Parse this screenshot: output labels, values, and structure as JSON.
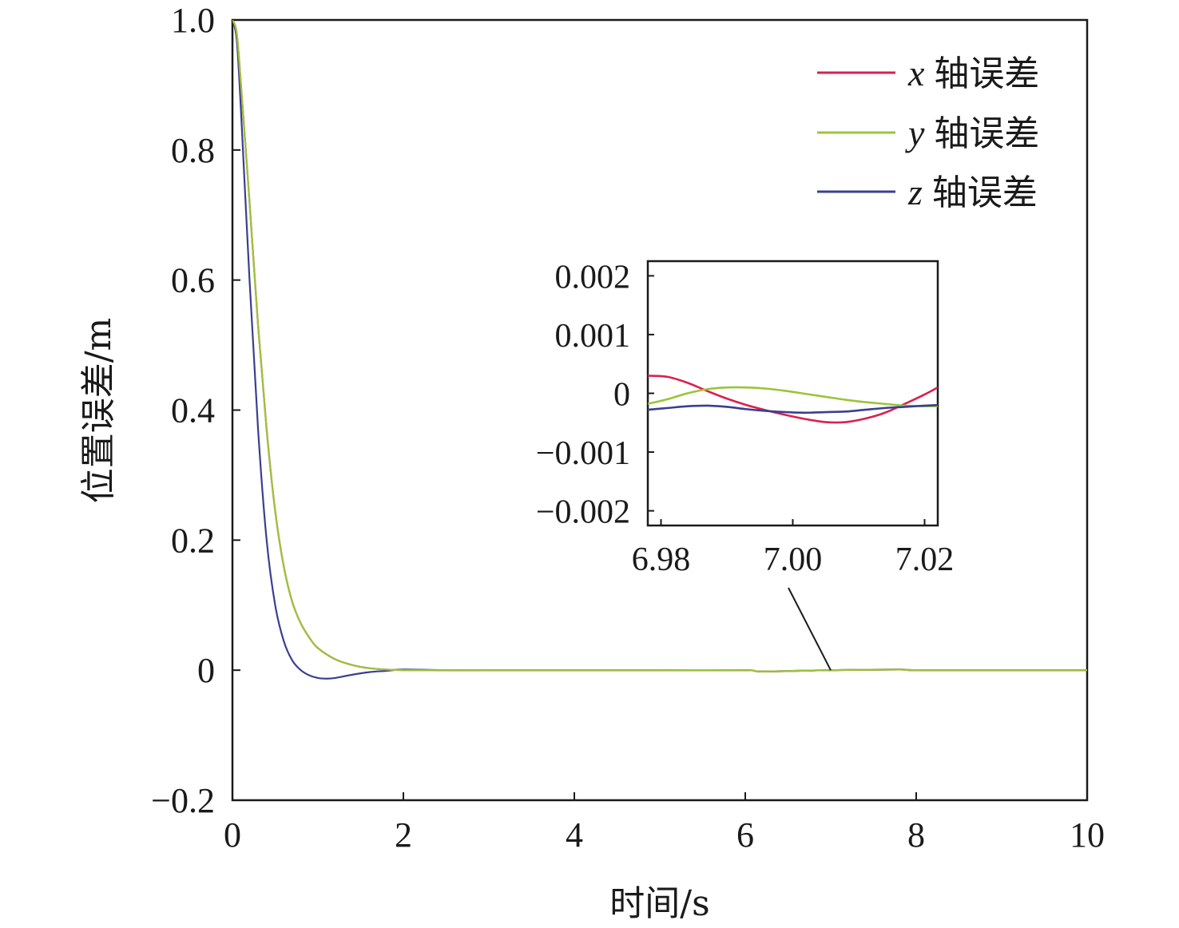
{
  "chart_data": [
    {
      "type": "line",
      "role": "main",
      "xlabel": "时间/s",
      "ylabel": "位置误差/m",
      "xlim": [
        0,
        10
      ],
      "ylim": [
        -0.2,
        1.0
      ],
      "x_ticks": [
        0,
        2,
        4,
        6,
        8,
        10
      ],
      "x_tick_labels": [
        "0",
        "2",
        "4",
        "6",
        "8",
        "10"
      ],
      "y_ticks": [
        1.0,
        0.8,
        0.6,
        0.4,
        0.2,
        0,
        -0.2
      ],
      "y_tick_labels": [
        "1.0",
        "0.8",
        "0.6",
        "0.4",
        "0.2",
        "0",
        "−0.2"
      ],
      "grid": false,
      "legend_position": "top-right",
      "series": [
        {
          "name": "x 轴误差",
          "var": "x",
          "label_suffix": "轴误差",
          "color": "#d9214f",
          "x": [
            0,
            0.05,
            0.1,
            0.2,
            0.3,
            0.4,
            0.5,
            0.6,
            0.7,
            0.8,
            0.9,
            1.0,
            1.2,
            1.4,
            1.6,
            1.8,
            2.0,
            2.5,
            3,
            4,
            5,
            6,
            6.2,
            7,
            7.8,
            8,
            9,
            10
          ],
          "y": [
            1.0,
            0.98,
            0.9,
            0.72,
            0.53,
            0.37,
            0.245,
            0.16,
            0.105,
            0.072,
            0.05,
            0.034,
            0.017,
            0.008,
            0.003,
            0.001,
            0.0,
            0.0,
            0.0,
            0.0,
            0.0,
            0.0,
            -0.002,
            0.0,
            0.001,
            0.0,
            0.0,
            0.0
          ]
        },
        {
          "name": "y 轴误差",
          "var": "y",
          "label_suffix": "轴误差",
          "color": "#9bc43a",
          "x": [
            0,
            0.05,
            0.1,
            0.2,
            0.3,
            0.4,
            0.5,
            0.6,
            0.7,
            0.8,
            0.9,
            1.0,
            1.2,
            1.4,
            1.6,
            1.8,
            2.0,
            2.5,
            3,
            4,
            5,
            6,
            6.2,
            7,
            7.8,
            8,
            9,
            10
          ],
          "y": [
            1.0,
            0.98,
            0.9,
            0.72,
            0.53,
            0.37,
            0.245,
            0.16,
            0.105,
            0.072,
            0.05,
            0.034,
            0.017,
            0.008,
            0.003,
            0.001,
            0.0,
            0.0,
            0.0,
            0.0,
            0.0,
            0.0,
            -0.002,
            0.0,
            0.001,
            0.0,
            0.0,
            0.0
          ]
        },
        {
          "name": "z 轴误差",
          "var": "z",
          "label_suffix": "轴误差",
          "color": "#3a3f8f",
          "x": [
            0,
            0.05,
            0.1,
            0.2,
            0.3,
            0.4,
            0.5,
            0.6,
            0.7,
            0.8,
            0.9,
            1.0,
            1.1,
            1.2,
            1.4,
            1.6,
            1.8,
            2.0,
            2.5,
            3,
            4,
            5,
            6,
            6.2,
            7,
            7.8,
            8,
            9,
            10
          ],
          "y": [
            1.0,
            0.97,
            0.86,
            0.6,
            0.37,
            0.2,
            0.1,
            0.045,
            0.015,
            0.0,
            -0.008,
            -0.012,
            -0.013,
            -0.012,
            -0.007,
            -0.003,
            -0.001,
            0.001,
            0.0,
            0.0,
            0.0,
            0.0,
            0.0,
            -0.002,
            0.0,
            0.001,
            0.0,
            0.0,
            0.0
          ]
        }
      ]
    },
    {
      "type": "line",
      "role": "inset",
      "xlabel": "",
      "ylabel": "",
      "xlim": [
        6.978,
        7.022
      ],
      "ylim": [
        -0.00225,
        0.00225
      ],
      "x_ticks": [
        6.98,
        7.0,
        7.02
      ],
      "x_tick_labels": [
        "6.98",
        "7.00",
        "7.02"
      ],
      "y_ticks": [
        0.002,
        0.001,
        0,
        -0.001,
        -0.002
      ],
      "y_tick_labels": [
        "0.002",
        "0.001",
        "0",
        "−0.001",
        "−0.002"
      ],
      "grid": false,
      "points_to_x": 7.0,
      "series": [
        {
          "name": "x 轴误差",
          "color": "#d9214f",
          "x": [
            6.978,
            6.981,
            6.984,
            6.987,
            6.99,
            6.993,
            6.996,
            6.999,
            7.002,
            7.005,
            7.008,
            7.011,
            7.014,
            7.017,
            7.02,
            7.022
          ],
          "y": [
            0.0003,
            0.00028,
            0.00018,
            4e-05,
            -9e-05,
            -0.0002,
            -0.00029,
            -0.00037,
            -0.00044,
            -0.00049,
            -0.00049,
            -0.00043,
            -0.00033,
            -0.00018,
            -2e-05,
            0.0001
          ]
        },
        {
          "name": "y 轴误差",
          "color": "#9bc43a",
          "x": [
            6.978,
            6.981,
            6.984,
            6.987,
            6.99,
            6.993,
            6.996,
            6.999,
            7.002,
            7.005,
            7.008,
            7.011,
            7.014,
            7.017,
            7.02,
            7.022
          ],
          "y": [
            -0.00018,
            -0.0001,
            0.0,
            7e-05,
            0.0001,
            0.0001,
            8e-05,
            4e-05,
            -1e-05,
            -6e-05,
            -0.00011,
            -0.00015,
            -0.00018,
            -0.00021,
            -0.00022,
            -0.00022
          ]
        },
        {
          "name": "z 轴误差",
          "color": "#3a3f8f",
          "x": [
            6.978,
            6.981,
            6.984,
            6.987,
            6.99,
            6.993,
            6.996,
            6.999,
            7.002,
            7.005,
            7.008,
            7.011,
            7.014,
            7.017,
            7.02,
            7.022
          ],
          "y": [
            -0.00028,
            -0.00025,
            -0.00022,
            -0.00021,
            -0.00023,
            -0.00027,
            -0.0003,
            -0.00032,
            -0.00033,
            -0.00032,
            -0.00031,
            -0.00028,
            -0.00025,
            -0.00023,
            -0.00021,
            -0.0002
          ]
        }
      ]
    }
  ]
}
